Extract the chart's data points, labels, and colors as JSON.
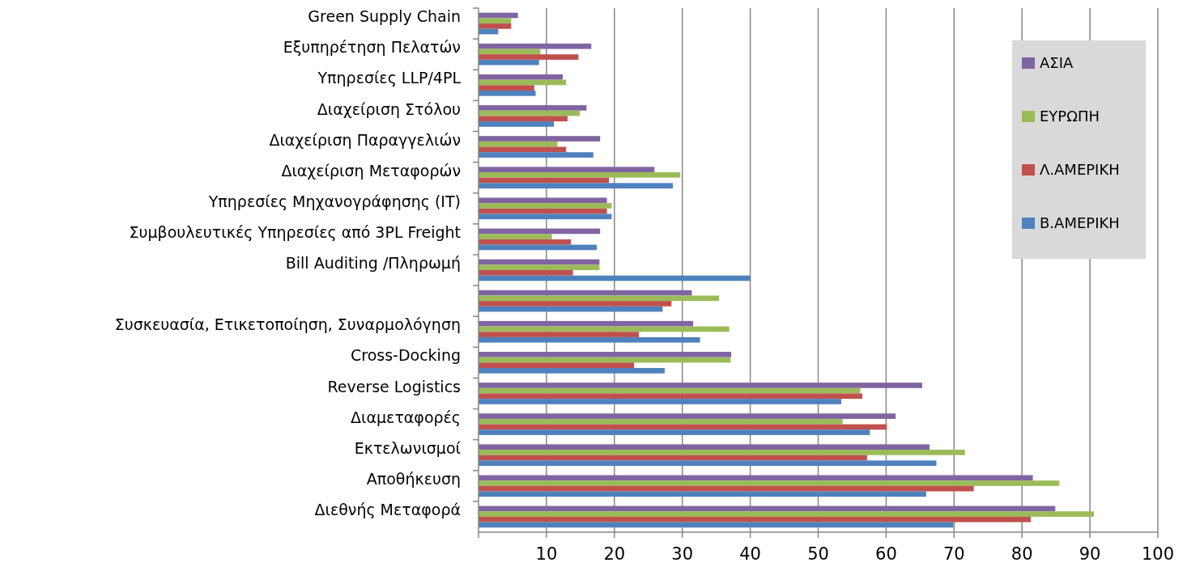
{
  "chart_data": {
    "type": "bar",
    "orientation": "horizontal",
    "categories": [
      "Green Supply Chain",
      "Εξυπηρέτηση Πελατών",
      "Υπηρεσίες LLP/4PL",
      "Διαχείριση Στόλου",
      "Διαχείριση Παραγγελιών",
      "Διαχείριση Μεταφορών",
      "Υπηρεσίες Μηχανογράφησης (IT)",
      "Συμβουλευτικές Υπηρεσίες από 3PL Freight",
      "Bill Auditing /Πληρωμή",
      null,
      "Συσκευασία, Ετικετοποίηση, Συναρμολόγηση",
      "Cross-Docking",
      "Reverse Logistics",
      "Διαμεταφορές",
      "Εκτελωνισμοί",
      "Αποθήκευση",
      "Διεθνής Μεταφορά"
    ],
    "series": [
      {
        "name": "ΑΣΙΑ",
        "color": "#8064a2",
        "values": [
          5.8,
          16.6,
          12.4,
          15.9,
          17.9,
          25.9,
          18.9,
          17.9,
          17.8,
          31.4,
          31.6,
          37.2,
          65.3,
          61.4,
          66.4,
          81.6,
          84.9
        ]
      },
      {
        "name": "ΕΥΡΩΠΗ",
        "color": "#9bbb59",
        "values": [
          4.8,
          9.1,
          12.9,
          14.9,
          11.6,
          29.7,
          19.6,
          10.8,
          17.8,
          35.4,
          36.9,
          37.1,
          56.2,
          53.6,
          71.6,
          85.5,
          90.6
        ]
      },
      {
        "name": "Λ.ΑΜΕΡΙΚΗ",
        "color": "#c0504d",
        "values": [
          4.8,
          14.7,
          8.2,
          13.1,
          12.9,
          19.2,
          18.9,
          13.6,
          13.9,
          28.4,
          23.6,
          22.9,
          56.5,
          60.1,
          57.2,
          72.9,
          81.3
        ]
      },
      {
        "name": "Β.ΑΜΕΡΙΚΗ",
        "color": "#4f81bd",
        "values": [
          2.9,
          8.9,
          8.4,
          11.1,
          16.9,
          28.6,
          19.6,
          17.4,
          40,
          27.1,
          32.6,
          27.4,
          53.4,
          57.6,
          67.4,
          65.9,
          69.9
        ]
      }
    ],
    "xlim": [
      0,
      100
    ],
    "xticks": [
      10,
      20,
      30,
      40,
      50,
      60,
      70,
      80,
      90,
      100
    ],
    "grid": "x",
    "legend": "top right"
  }
}
